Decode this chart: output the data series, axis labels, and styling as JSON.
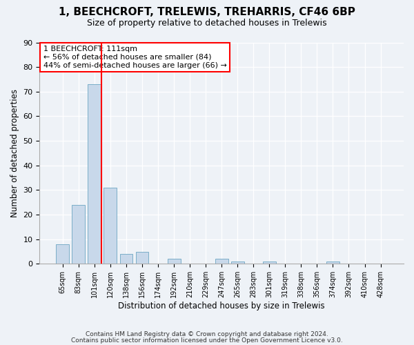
{
  "title1": "1, BEECHCROFT, TRELEWIS, TREHARRIS, CF46 6BP",
  "title2": "Size of property relative to detached houses in Trelewis",
  "xlabel": "Distribution of detached houses by size in Trelewis",
  "ylabel": "Number of detached properties",
  "bin_labels": [
    "65sqm",
    "83sqm",
    "101sqm",
    "120sqm",
    "138sqm",
    "156sqm",
    "174sqm",
    "192sqm",
    "210sqm",
    "229sqm",
    "247sqm",
    "265sqm",
    "283sqm",
    "301sqm",
    "319sqm",
    "338sqm",
    "356sqm",
    "374sqm",
    "392sqm",
    "410sqm",
    "428sqm"
  ],
  "bar_values": [
    8,
    24,
    73,
    31,
    4,
    5,
    0,
    2,
    0,
    0,
    2,
    1,
    0,
    1,
    0,
    0,
    0,
    1,
    0,
    0,
    0
  ],
  "bar_color": "#c8d8ea",
  "bar_edgecolor": "#7baec8",
  "vline_x": 2.44,
  "vline_color": "red",
  "annotation_title": "1 BEECHCROFT: 111sqm",
  "annotation_line1": "← 56% of detached houses are smaller (84)",
  "annotation_line2": "44% of semi-detached houses are larger (66) →",
  "annotation_box_edgecolor": "red",
  "ylim": [
    0,
    90
  ],
  "yticks": [
    0,
    10,
    20,
    30,
    40,
    50,
    60,
    70,
    80,
    90
  ],
  "footer1": "Contains HM Land Registry data © Crown copyright and database right 2024.",
  "footer2": "Contains public sector information licensed under the Open Government Licence v3.0.",
  "background_color": "#eef2f7",
  "plot_bg_color": "#eef2f7",
  "grid_color": "white"
}
